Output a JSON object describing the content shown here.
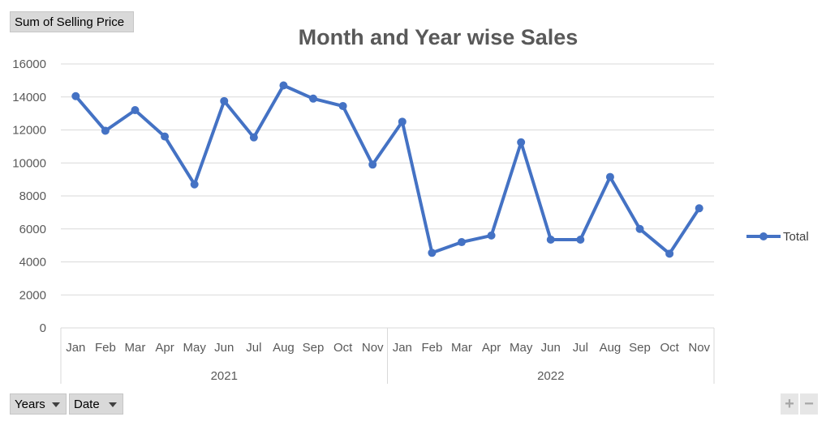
{
  "value_field": "Sum of Selling Price",
  "axis_fields": [
    "Years",
    "Date"
  ],
  "zoom_buttons": [
    "+",
    "−"
  ],
  "colors": {
    "series": "#4472c4",
    "grid": "#d9d9d9",
    "text": "#595959"
  },
  "chart_data": {
    "type": "line",
    "title": "Month and Year wise Sales",
    "xlabel": "",
    "ylabel": "",
    "ylim": [
      0,
      16000
    ],
    "yticks": [
      0,
      2000,
      4000,
      6000,
      8000,
      10000,
      12000,
      14000,
      16000
    ],
    "grid": true,
    "legend_position": "right",
    "categories": [
      "Jan",
      "Feb",
      "Mar",
      "Apr",
      "May",
      "Jun",
      "Jul",
      "Aug",
      "Sep",
      "Oct",
      "Nov",
      "Jan",
      "Feb",
      "Mar",
      "Apr",
      "May",
      "Jun",
      "Jul",
      "Aug",
      "Sep",
      "Oct",
      "Nov"
    ],
    "groups": [
      {
        "label": "2021",
        "count": 11
      },
      {
        "label": "2022",
        "count": 11
      }
    ],
    "series": [
      {
        "name": "Total",
        "values": [
          14050,
          11950,
          13200,
          11600,
          8700,
          13750,
          11550,
          14700,
          13900,
          13450,
          9900,
          12500,
          4550,
          5200,
          5600,
          11250,
          5350,
          5350,
          9150,
          6000,
          4500,
          7250
        ]
      }
    ]
  }
}
